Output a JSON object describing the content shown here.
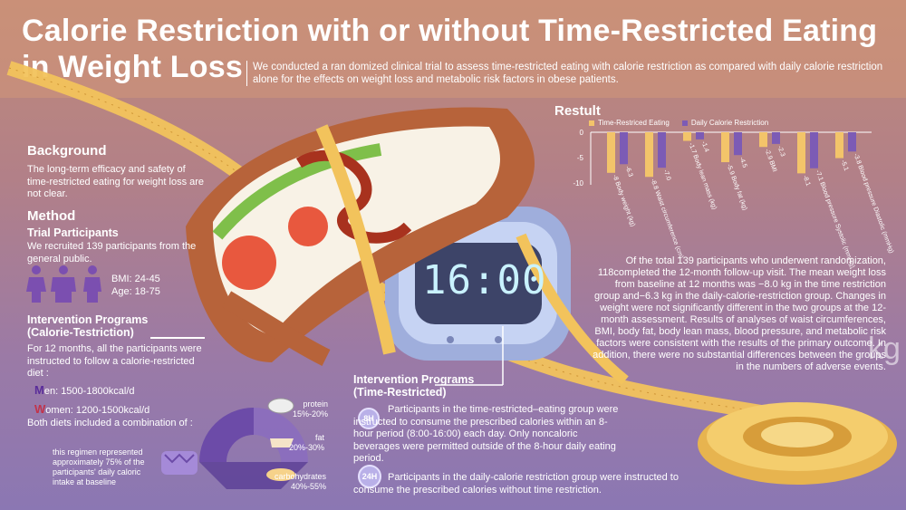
{
  "header": {
    "title_line1": "Calorie Restriction with or without Time-Restricted Eating",
    "title_line2": "in Weight Loss",
    "subtitle": "We conducted a ran domized clinical trial to assess time-restricted eating with calorie restriction as compared with daily calorie restriction alone for the effects on weight loss and metabolic risk factors in obese patients."
  },
  "background": {
    "heading": "Background",
    "text": "The long-term efficacy and safety of time-restricted eating for weight loss are not clear."
  },
  "method": {
    "heading": "Method",
    "participants_heading": "Trial Participants",
    "participants_text": "We recruited 139 participants from the general public.",
    "bmi": "BMI: 24-45",
    "age": "Age: 18-75"
  },
  "calorie_program": {
    "heading1": "Intervention Programs",
    "heading2": "(Calorie-Testriction)",
    "text": "For 12 months, all the participants were instructed to follow a calorie-restricted diet :",
    "men_initial": "M",
    "men_rest": "en: 1500-1800kcal/d",
    "women_initial": "W",
    "women_rest": "omen: 1200-1500kcal/d",
    "combination": "Both diets included a combination of :",
    "regimen_note": "this regimen represented approximately 75% of the participants' daily caloric intake at baseline",
    "macros": [
      {
        "name": "protein",
        "range": "15%-20%"
      },
      {
        "name": "fat",
        "range": "20%-30%"
      },
      {
        "name": "carbohydrates",
        "range": "40%-55%"
      }
    ]
  },
  "time_program": {
    "heading1": "Intervention Programs",
    "heading2": "(Time-Restricted)",
    "badge_8h": "8H",
    "text_8h": "Participants in the time-restricted–eating group were instructed to consume the prescribed calories within an 8-hour period (8:00-16:00) each day. Only noncaloric beverages were permitted outside of the 8-hour daily eating period.",
    "badge_24h": "24H",
    "text_24h": "Participants in the daily-calorie restriction group were instructed to consume the prescribed calories without time restriction."
  },
  "clock": {
    "display": "16:00"
  },
  "result": {
    "heading": "Restult",
    "summary": "Of the total 139 participants who underwent randomization, 118completed the 12-month follow-up visit. The mean weight loss from baseline at 12 months was −8.0 kg in the time restriction group and−6.3 kg in the daily-calorie-restriction group. Changes in weight were not significantly different in the two groups at the 12-month assessment. Results of analyses of waist circumferences, BMI, body fat, body lean mass, blood pressure, and metabolic risk factors were consistent with the results of the primary outcome. In addition, there were no substantial differences between the groups in the numbers of adverse events."
  },
  "kg_label": "kg",
  "colors": {
    "tre": "#f3c46a",
    "dcr": "#7c5bb5",
    "accent_men": "#5a2d9a",
    "accent_women": "#c2334a"
  },
  "chart_data": {
    "type": "bar",
    "title": "",
    "categories": [
      "Body weight (kg)",
      "Waist circumference (cm)",
      "Body lean mass (kg)",
      "Body fat (kg)",
      "BMI",
      "Blood pressure Systolic (mmHg)",
      "Blood pressure Diastolic (mmHg)"
    ],
    "series": [
      {
        "name": "Time-Restriced Eating",
        "values": [
          -8.0,
          -8.8,
          -1.7,
          -5.9,
          -2.9,
          -8.1,
          -5.1
        ]
      },
      {
        "name": "Daily Calorie Restriction",
        "values": [
          -6.3,
          -7.0,
          -1.4,
          -4.5,
          -2.3,
          -7.1,
          -3.8
        ]
      }
    ],
    "category_labels_tre": [
      "-8 Body weight (kg)",
      "-8.8 Waist circumference (cm)",
      "-1.7 Body lean mass (kg)",
      "-5.9 Body fat (kg)",
      "-2.9 BMI",
      "-8.1",
      "-5.1"
    ],
    "category_labels_dcr": [
      "-6.3",
      "-7.0",
      "-1.4",
      "-4.5",
      "-2.3",
      "-7.1 Blood pressure Systolic (mmHg)",
      "-3.8 Blood pressure Diastolic (mmHg)"
    ],
    "yticks": [
      "0",
      "-5",
      "-10"
    ],
    "ylim": [
      -10,
      0
    ],
    "legend": "top"
  }
}
